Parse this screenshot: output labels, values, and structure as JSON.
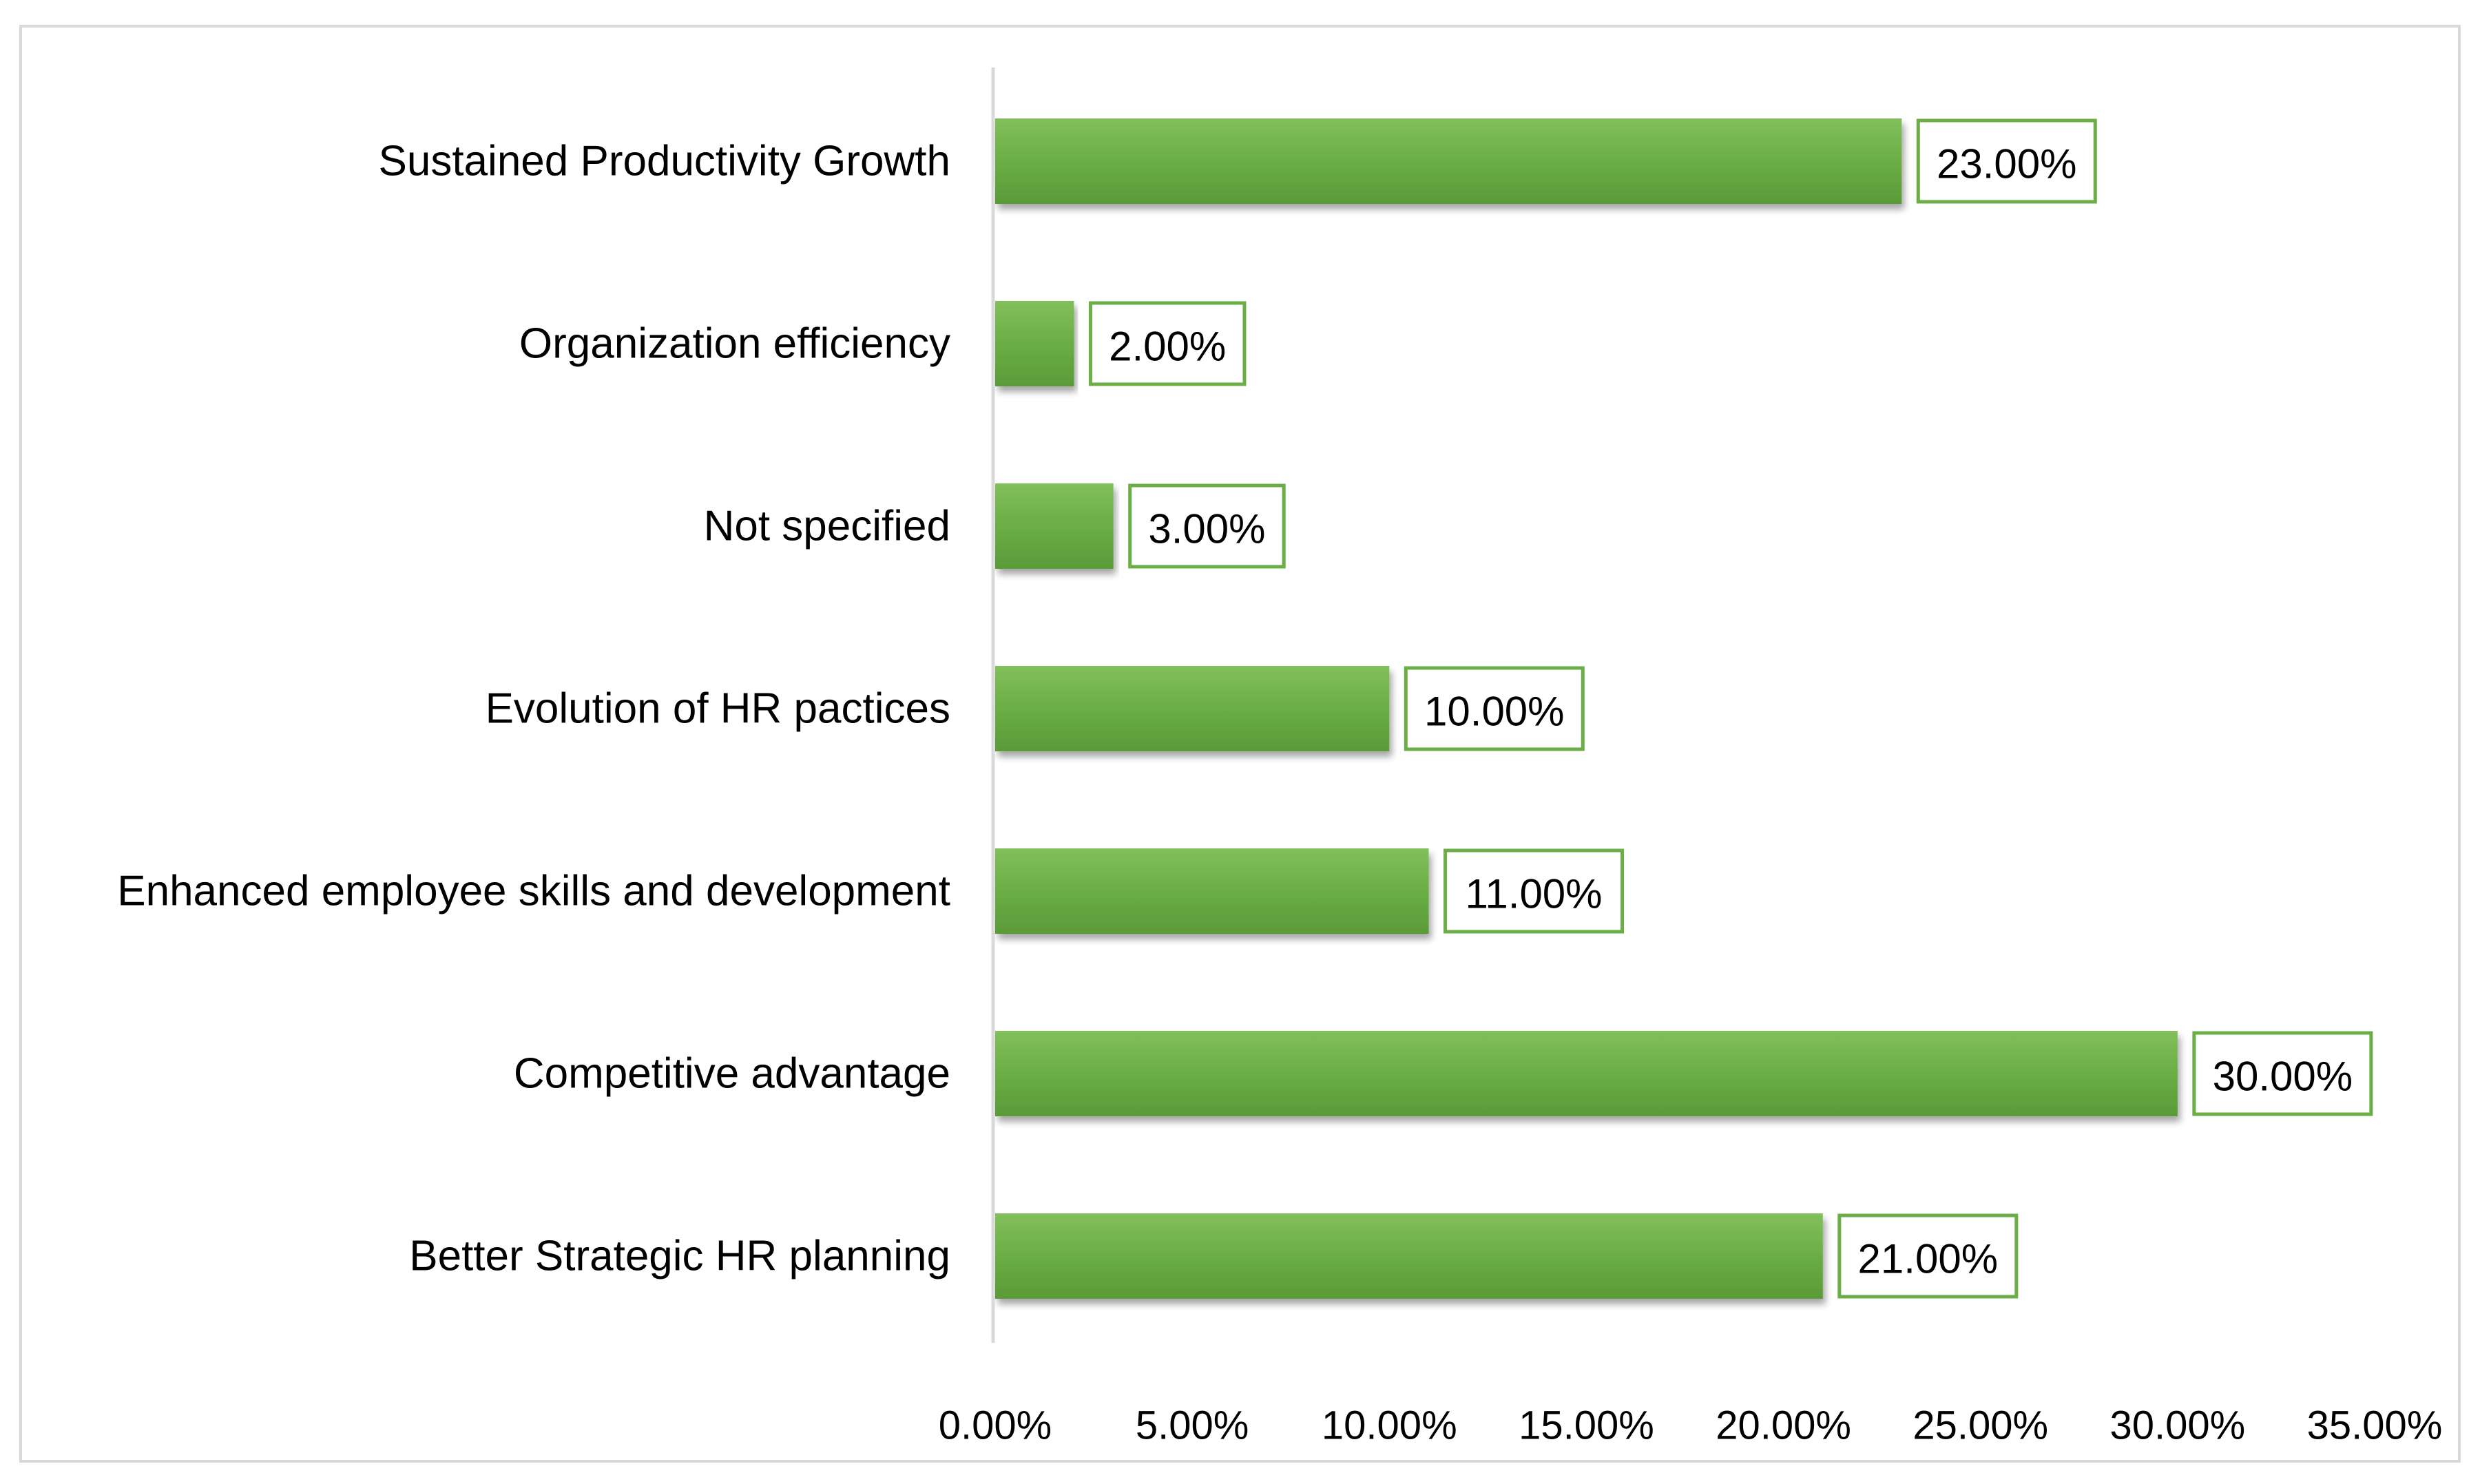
{
  "colors": {
    "bar": "#6aae45",
    "bar_light": "#82bf5c",
    "bar_dark": "#5a9b38",
    "label_border": "#6aae45",
    "axis": "#d9d9d9",
    "frame": "#d9d9d9"
  },
  "chart_data": {
    "type": "bar",
    "orientation": "horizontal",
    "title": "",
    "xlabel": "",
    "ylabel": "",
    "categories": [
      "Sustained Productivity Growth",
      "Organization efficiency",
      "Not specified",
      "Evolution of HR pactices",
      "Enhanced employee skills and development",
      "Competitive advantage",
      "Better Strategic HR planning"
    ],
    "values": [
      23.0,
      2.0,
      3.0,
      10.0,
      11.0,
      30.0,
      21.0
    ],
    "data_labels": [
      "23.00%",
      "2.00%",
      "3.00%",
      "10.00%",
      "11.00%",
      "30.00%",
      "21.00%"
    ],
    "xlim": [
      0,
      35
    ],
    "x_ticks": [
      0,
      5,
      10,
      15,
      20,
      25,
      30,
      35
    ],
    "x_tick_labels": [
      "0.00%",
      "5.00%",
      "10.00%",
      "15.00%",
      "20.00%",
      "25.00%",
      "30.00%",
      "35.00%"
    ],
    "grid": false,
    "legend": "none"
  }
}
